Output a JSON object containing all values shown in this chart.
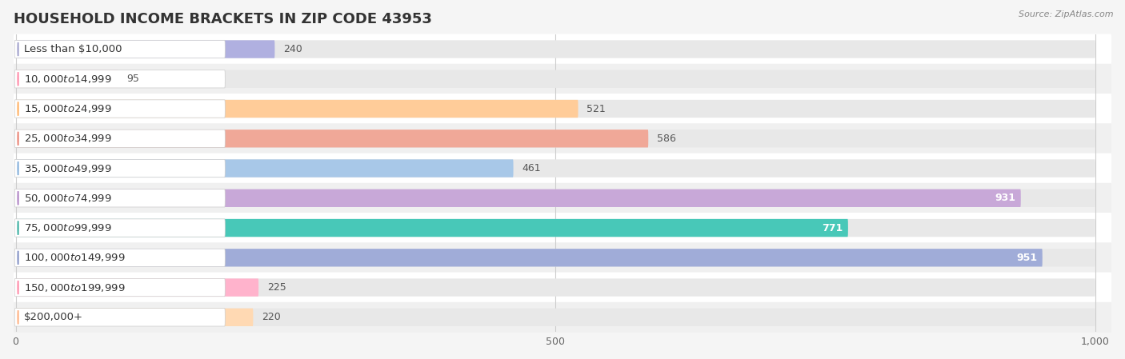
{
  "title": "HOUSEHOLD INCOME BRACKETS IN ZIP CODE 43953",
  "source": "Source: ZipAtlas.com",
  "categories": [
    "Less than $10,000",
    "$10,000 to $14,999",
    "$15,000 to $24,999",
    "$25,000 to $34,999",
    "$35,000 to $49,999",
    "$50,000 to $74,999",
    "$75,000 to $99,999",
    "$100,000 to $149,999",
    "$150,000 to $199,999",
    "$200,000+"
  ],
  "values": [
    240,
    95,
    521,
    586,
    461,
    931,
    771,
    951,
    225,
    220
  ],
  "bar_colors": [
    "#b0b0e0",
    "#ffb3cc",
    "#ffcc99",
    "#f0a898",
    "#a8c8e8",
    "#c8a8d8",
    "#48c8b8",
    "#a0acd8",
    "#ffb3cc",
    "#ffd9b3"
  ],
  "dot_colors": [
    "#9898c8",
    "#ff80a0",
    "#ffaa55",
    "#e87868",
    "#78a8d8",
    "#a878c0",
    "#28a898",
    "#7888c0",
    "#ff80a0",
    "#ffaa77"
  ],
  "xlim": [
    0,
    1000
  ],
  "xticks": [
    0,
    500,
    1000
  ],
  "xtick_labels": [
    "0",
    "500",
    "1,000"
  ],
  "background_color": "#f5f5f5",
  "row_colors": [
    "#ffffff",
    "#f0f0f0"
  ],
  "title_fontsize": 13,
  "label_fontsize": 9.5,
  "value_fontsize": 9,
  "value_inside_threshold": 650
}
